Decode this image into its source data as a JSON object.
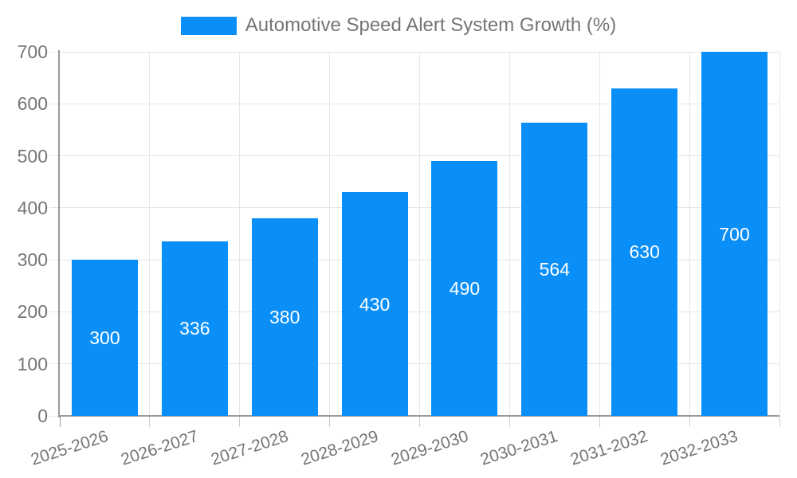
{
  "chart_data": {
    "type": "bar",
    "title": "Automotive Speed Alert System Growth (%)",
    "categories": [
      "2025-2026",
      "2026-2027",
      "2027-2028",
      "2028-2029",
      "2029-2030",
      "2030-2031",
      "2031-2032",
      "2032-2033"
    ],
    "values": [
      300,
      336,
      380,
      430,
      490,
      564,
      630,
      700
    ],
    "series": [
      {
        "name": "Automotive Speed Alert System Growth (%)",
        "values": [
          300,
          336,
          380,
          430,
          490,
          564,
          630,
          700
        ]
      }
    ],
    "xlabel": "",
    "ylabel": "",
    "ylim": [
      0,
      700
    ],
    "yticks": [
      0,
      100,
      200,
      300,
      400,
      500,
      600,
      700
    ],
    "grid": true,
    "legend_position": "top-center",
    "colors": {
      "bar": "#0A8FF8",
      "value_label": "#FFFFFF",
      "text": "#757575",
      "axis": "#999999",
      "gridline": "#E6E6E6",
      "tick": "#CCCCCC",
      "background": "#FFFFFF"
    }
  }
}
